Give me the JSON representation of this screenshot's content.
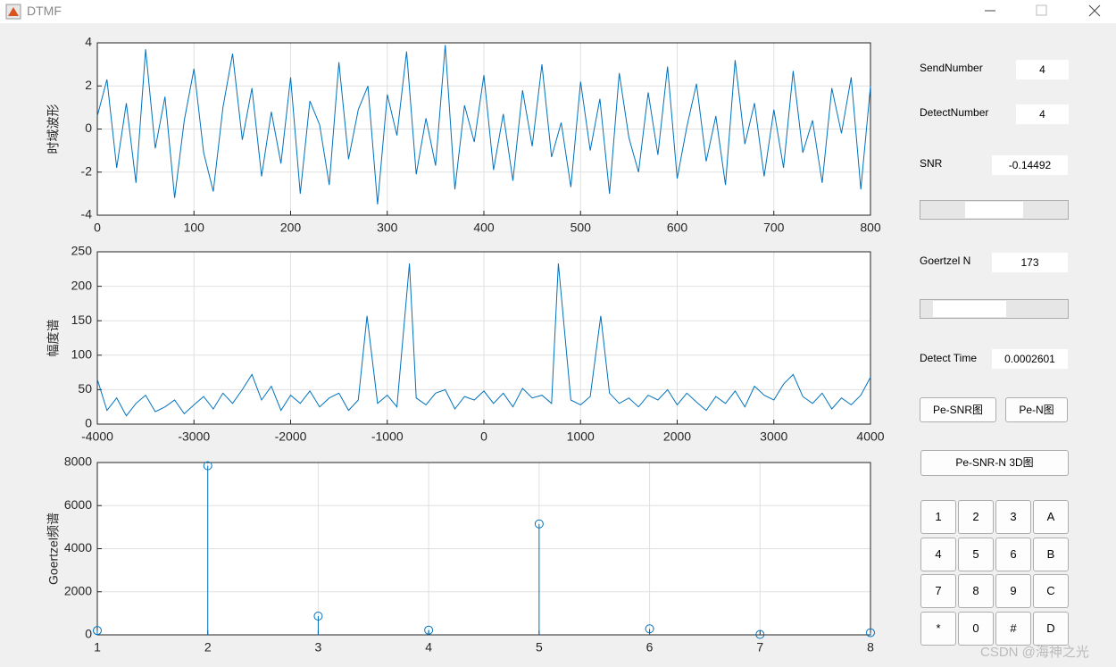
{
  "window": {
    "title": "DTMF"
  },
  "chart_data": [
    {
      "type": "line",
      "ylabel": "时域波形",
      "x": [
        0,
        10,
        20,
        30,
        40,
        50,
        60,
        70,
        80,
        90,
        100,
        110,
        120,
        130,
        140,
        150,
        160,
        170,
        180,
        190,
        200,
        210,
        220,
        230,
        240,
        250,
        260,
        270,
        280,
        290,
        300,
        310,
        320,
        330,
        340,
        350,
        360,
        370,
        380,
        390,
        400,
        410,
        420,
        430,
        440,
        450,
        460,
        470,
        480,
        490,
        500,
        510,
        520,
        530,
        540,
        550,
        560,
        570,
        580,
        590,
        600,
        610,
        620,
        630,
        640,
        650,
        660,
        670,
        680,
        690,
        700,
        710,
        720,
        730,
        740,
        750,
        760,
        770,
        780,
        790,
        800
      ],
      "series": [
        {
          "color": "#0072bd",
          "values": [
            0.6,
            2.3,
            -1.8,
            1.2,
            -2.5,
            3.7,
            -0.9,
            1.5,
            -3.2,
            0.4,
            2.8,
            -1.1,
            -2.9,
            1.0,
            3.5,
            -0.5,
            1.9,
            -2.2,
            0.8,
            -1.6,
            2.4,
            -3.0,
            1.3,
            0.2,
            -2.6,
            3.1,
            -1.4,
            0.9,
            2.0,
            -3.5,
            1.6,
            -0.3,
            3.6,
            -2.1,
            0.5,
            -1.7,
            3.9,
            -2.8,
            1.1,
            -0.6,
            2.5,
            -1.9,
            0.7,
            -2.4,
            1.8,
            -0.8,
            3.0,
            -1.3,
            0.3,
            -2.7,
            2.2,
            -1.0,
            1.4,
            -3.0,
            2.6,
            -0.4,
            -2.0,
            1.7,
            -1.2,
            2.9,
            -2.3,
            0.1,
            2.1,
            -1.5,
            0.6,
            -2.6,
            3.2,
            -0.7,
            1.2,
            -2.2,
            0.9,
            -1.8,
            2.7,
            -1.1,
            0.4,
            -2.5,
            1.9,
            -0.2,
            2.4,
            -2.8,
            2.0
          ]
        }
      ],
      "xlim": [
        0,
        800
      ],
      "ylim": [
        -4,
        4
      ],
      "xticks": [
        0,
        100,
        200,
        300,
        400,
        500,
        600,
        700,
        800
      ],
      "yticks": [
        -4,
        -2,
        0,
        2,
        4
      ],
      "grid": true
    },
    {
      "type": "line",
      "ylabel": "幅度谱",
      "x": [
        -4000,
        -3900,
        -3800,
        -3700,
        -3600,
        -3500,
        -3400,
        -3300,
        -3200,
        -3100,
        -3000,
        -2900,
        -2800,
        -2700,
        -2600,
        -2500,
        -2400,
        -2300,
        -2200,
        -2100,
        -2000,
        -1900,
        -1800,
        -1700,
        -1600,
        -1500,
        -1400,
        -1300,
        -1209,
        -1100,
        -1000,
        -900,
        -770,
        -700,
        -600,
        -500,
        -400,
        -300,
        -200,
        -100,
        0,
        100,
        200,
        300,
        400,
        500,
        600,
        700,
        770,
        900,
        1000,
        1100,
        1209,
        1300,
        1400,
        1500,
        1600,
        1700,
        1800,
        1900,
        2000,
        2100,
        2200,
        2300,
        2400,
        2500,
        2600,
        2700,
        2800,
        2900,
        3000,
        3100,
        3200,
        3300,
        3400,
        3500,
        3600,
        3700,
        3800,
        3900,
        4000
      ],
      "series": [
        {
          "color": "#0072bd",
          "values": [
            65,
            20,
            38,
            12,
            30,
            42,
            18,
            25,
            35,
            15,
            28,
            40,
            22,
            45,
            30,
            50,
            72,
            35,
            55,
            20,
            42,
            30,
            48,
            25,
            38,
            45,
            20,
            35,
            157,
            30,
            42,
            25,
            233,
            38,
            28,
            45,
            50,
            22,
            40,
            35,
            48,
            30,
            45,
            25,
            52,
            38,
            42,
            30,
            233,
            35,
            28,
            40,
            157,
            45,
            30,
            38,
            25,
            42,
            35,
            50,
            28,
            45,
            32,
            20,
            40,
            30,
            48,
            25,
            55,
            42,
            35,
            58,
            72,
            40,
            30,
            45,
            22,
            38,
            28,
            42,
            68
          ]
        }
      ],
      "xlim": [
        -4000,
        4000
      ],
      "ylim": [
        0,
        250
      ],
      "xticks": [
        -4000,
        -3000,
        -2000,
        -1000,
        0,
        1000,
        2000,
        3000,
        4000
      ],
      "yticks": [
        0,
        50,
        100,
        150,
        200,
        250
      ],
      "grid": true
    },
    {
      "type": "stem",
      "ylabel": "Goertzel频谱",
      "x": [
        1,
        2,
        3,
        4,
        5,
        6,
        7,
        8
      ],
      "series": [
        {
          "color": "#0072bd",
          "values": [
            200,
            7850,
            870,
            220,
            5150,
            280,
            20,
            100
          ]
        }
      ],
      "xlim": [
        1,
        8
      ],
      "ylim": [
        0,
        8000
      ],
      "xticks": [
        1,
        2,
        3,
        4,
        5,
        6,
        7,
        8
      ],
      "yticks": [
        0,
        2000,
        4000,
        6000,
        8000
      ],
      "grid": true
    }
  ],
  "panel": {
    "fields": [
      {
        "label": "SendNumber",
        "value": "4"
      },
      {
        "label": "DetectNumber",
        "value": "4"
      },
      {
        "label": "SNR",
        "value": "-0.14492"
      },
      {
        "label": "Goertzel N",
        "value": "173"
      },
      {
        "label": "Detect Time",
        "value": "0.0002601"
      }
    ],
    "buttons": [
      "Pe-SNR图",
      "Pe-N图",
      "Pe-SNR-N 3D图"
    ],
    "keypad": [
      [
        "1",
        "2",
        "3",
        "A"
      ],
      [
        "4",
        "5",
        "6",
        "B"
      ],
      [
        "7",
        "8",
        "9",
        "C"
      ],
      [
        "*",
        "0",
        "#",
        "D"
      ]
    ]
  },
  "watermark": "CSDN @海神之光"
}
